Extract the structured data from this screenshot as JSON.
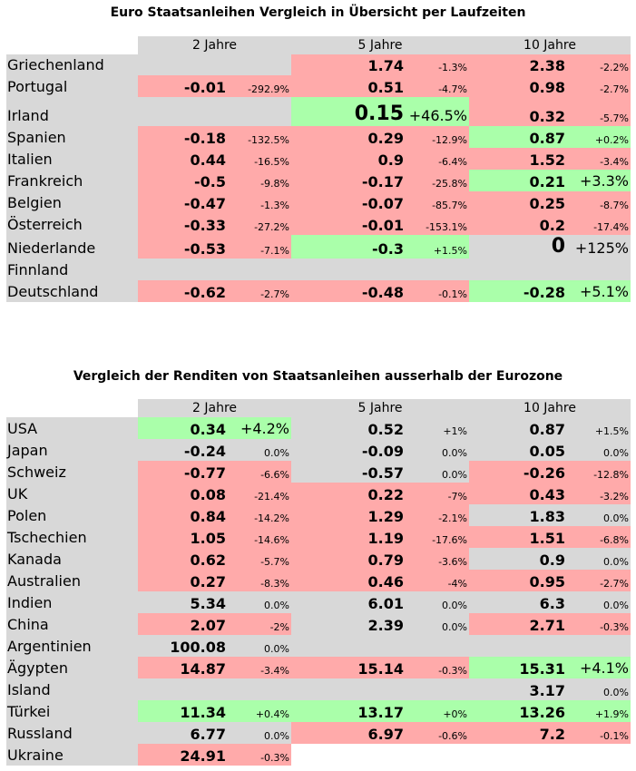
{
  "t1": {
    "title": "Euro Staatsanleihen Vergleich in Übersicht per Laufzeiten",
    "headers": [
      "2 Jahre",
      "5 Jahre",
      "10 Jahre"
    ],
    "rows": [
      {
        "name": "Griechenland",
        "h": 23,
        "cells": [
          {
            "bg": "grey"
          },
          {
            "v": "1.74",
            "c": "-1.3%",
            "bg": "red"
          },
          {
            "v": "2.38",
            "c": "-2.2%",
            "bg": "red"
          }
        ]
      },
      {
        "name": "Portugal",
        "h": 24,
        "cells": [
          {
            "v": "-0.01",
            "c": "-292.9%",
            "bg": "red"
          },
          {
            "v": "0.51",
            "c": "-4.7%",
            "bg": "red"
          },
          {
            "v": "0.98",
            "c": "-2.7%",
            "bg": "red"
          }
        ]
      },
      {
        "name": "Irland",
        "h": 32,
        "cells": [
          {
            "bg": "grey"
          },
          {
            "v": "0.15",
            "c": "+46.5%",
            "bg": "green",
            "big": true
          },
          {
            "v": "0.32",
            "c": "-5.7%",
            "bg": "red"
          }
        ]
      },
      {
        "name": "Spanien",
        "h": 24,
        "cells": [
          {
            "v": "-0.18",
            "c": "-132.5%",
            "bg": "red"
          },
          {
            "v": "0.29",
            "c": "-12.9%",
            "bg": "red"
          },
          {
            "v": "0.87",
            "c": "+0.2%",
            "bg": "green"
          }
        ]
      },
      {
        "name": "Italien",
        "h": 24,
        "cells": [
          {
            "v": "0.44",
            "c": "-16.5%",
            "bg": "red"
          },
          {
            "v": "0.9",
            "c": "-6.4%",
            "bg": "red"
          },
          {
            "v": "1.52",
            "c": "-3.4%",
            "bg": "red"
          }
        ]
      },
      {
        "name": "Frankreich",
        "h": 24,
        "cells": [
          {
            "v": "-0.5",
            "c": "-9.8%",
            "bg": "red"
          },
          {
            "v": "-0.17",
            "c": "-25.8%",
            "bg": "red"
          },
          {
            "v": "0.21",
            "c": "+3.3%",
            "bg": "green",
            "mid": true
          }
        ]
      },
      {
        "name": "Belgien",
        "h": 24,
        "cells": [
          {
            "v": "-0.47",
            "c": "-1.3%",
            "bg": "red"
          },
          {
            "v": "-0.07",
            "c": "-85.7%",
            "bg": "red"
          },
          {
            "v": "0.25",
            "c": "-8.7%",
            "bg": "red"
          }
        ]
      },
      {
        "name": "Österreich",
        "h": 24,
        "cells": [
          {
            "v": "-0.33",
            "c": "-27.2%",
            "bg": "red"
          },
          {
            "v": "-0.01",
            "c": "-153.1%",
            "bg": "red"
          },
          {
            "v": "0.2",
            "c": "-17.4%",
            "bg": "red"
          }
        ]
      },
      {
        "name": "Niederlande",
        "h": 26,
        "cells": [
          {
            "v": "-0.53",
            "c": "-7.1%",
            "bg": "red"
          },
          {
            "v": "-0.3",
            "c": "+1.5%",
            "bg": "green"
          },
          {
            "v": "0",
            "c": "+125%",
            "bg": "grey",
            "big": true
          }
        ]
      },
      {
        "name": "Finnland",
        "h": 24,
        "cells": [
          {
            "bg": "grey"
          },
          {
            "bg": "grey"
          },
          {
            "bg": "grey"
          }
        ]
      },
      {
        "name": "Deutschland",
        "h": 24,
        "cells": [
          {
            "v": "-0.62",
            "c": "-2.7%",
            "bg": "red"
          },
          {
            "v": "-0.48",
            "c": "-0.1%",
            "bg": "red"
          },
          {
            "v": "-0.28",
            "c": "+5.1%",
            "bg": "green",
            "mid": true
          }
        ]
      }
    ]
  },
  "t2": {
    "title": "Vergleich der Renditen von Staatsanleihen ausserhalb der Eurozone",
    "headers": [
      "2 Jahre",
      "5 Jahre",
      "10 Jahre"
    ],
    "rows": [
      {
        "name": "USA",
        "h": 24,
        "cells": [
          {
            "v": "0.34",
            "c": "+4.2%",
            "bg": "green",
            "mid": true
          },
          {
            "v": "0.52",
            "c": "+1%",
            "bg": "grey"
          },
          {
            "v": "0.87",
            "c": "+1.5%",
            "bg": "grey"
          }
        ]
      },
      {
        "name": "Japan",
        "h": 24,
        "cells": [
          {
            "v": "-0.24",
            "c": "0.0%",
            "bg": "grey"
          },
          {
            "v": "-0.09",
            "c": "0.0%",
            "bg": "grey"
          },
          {
            "v": "0.05",
            "c": "0.0%",
            "bg": "grey"
          }
        ]
      },
      {
        "name": "Schweiz",
        "h": 24,
        "cells": [
          {
            "v": "-0.77",
            "c": "-6.6%",
            "bg": "red"
          },
          {
            "v": "-0.57",
            "c": "0.0%",
            "bg": "grey"
          },
          {
            "v": "-0.26",
            "c": "-12.8%",
            "bg": "red"
          }
        ]
      },
      {
        "name": "UK",
        "h": 24,
        "cells": [
          {
            "v": "0.08",
            "c": "-21.4%",
            "bg": "red"
          },
          {
            "v": "0.22",
            "c": "-7%",
            "bg": "red"
          },
          {
            "v": "0.43",
            "c": "-3.2%",
            "bg": "red"
          }
        ]
      },
      {
        "name": "Polen",
        "h": 24,
        "cells": [
          {
            "v": "0.84",
            "c": "-14.2%",
            "bg": "red"
          },
          {
            "v": "1.29",
            "c": "-2.1%",
            "bg": "red"
          },
          {
            "v": "1.83",
            "c": "0.0%",
            "bg": "grey"
          }
        ]
      },
      {
        "name": "Tschechien",
        "h": 24,
        "cells": [
          {
            "v": "1.05",
            "c": "-14.6%",
            "bg": "red"
          },
          {
            "v": "1.19",
            "c": "-17.6%",
            "bg": "red"
          },
          {
            "v": "1.51",
            "c": "-6.8%",
            "bg": "red"
          }
        ]
      },
      {
        "name": "Kanada",
        "h": 24,
        "cells": [
          {
            "v": "0.62",
            "c": "-5.7%",
            "bg": "red"
          },
          {
            "v": "0.79",
            "c": "-3.6%",
            "bg": "red"
          },
          {
            "v": "0.9",
            "c": "0.0%",
            "bg": "grey"
          }
        ]
      },
      {
        "name": "Australien",
        "h": 24,
        "cells": [
          {
            "v": "0.27",
            "c": "-8.3%",
            "bg": "red"
          },
          {
            "v": "0.46",
            "c": "-4%",
            "bg": "red"
          },
          {
            "v": "0.95",
            "c": "-2.7%",
            "bg": "red"
          }
        ]
      },
      {
        "name": "Indien",
        "h": 24,
        "cells": [
          {
            "v": "5.34",
            "c": "0.0%",
            "bg": "grey"
          },
          {
            "v": "6.01",
            "c": "0.0%",
            "bg": "grey"
          },
          {
            "v": "6.3",
            "c": "0.0%",
            "bg": "grey"
          }
        ]
      },
      {
        "name": "China",
        "h": 24,
        "cells": [
          {
            "v": "2.07",
            "c": "-2%",
            "bg": "red"
          },
          {
            "v": "2.39",
            "c": "0.0%",
            "bg": "grey"
          },
          {
            "v": "2.71",
            "c": "-0.3%",
            "bg": "red"
          }
        ]
      },
      {
        "name": "Argentinien",
        "h": 24,
        "cells": [
          {
            "v": "100.08",
            "c": "0.0%",
            "bg": "grey"
          },
          {
            "bg": "grey"
          },
          {
            "bg": "grey"
          }
        ]
      },
      {
        "name": "Ägypten",
        "h": 24,
        "cells": [
          {
            "v": "14.87",
            "c": "-3.4%",
            "bg": "red"
          },
          {
            "v": "15.14",
            "c": "-0.3%",
            "bg": "red"
          },
          {
            "v": "15.31",
            "c": "+4.1%",
            "bg": "green",
            "mid": true
          }
        ]
      },
      {
        "name": "Island",
        "h": 24,
        "cells": [
          {
            "bg": "grey"
          },
          {
            "bg": "grey"
          },
          {
            "v": "3.17",
            "c": "0.0%",
            "bg": "grey"
          }
        ]
      },
      {
        "name": "Türkei",
        "h": 24,
        "cells": [
          {
            "v": "11.34",
            "c": "+0.4%",
            "bg": "green"
          },
          {
            "v": "13.17",
            "c": "+0%",
            "bg": "green"
          },
          {
            "v": "13.26",
            "c": "+1.9%",
            "bg": "green"
          }
        ]
      },
      {
        "name": "Russland",
        "h": 24,
        "cells": [
          {
            "v": "6.77",
            "c": "0.0%",
            "bg": "grey"
          },
          {
            "v": "6.97",
            "c": "-0.6%",
            "bg": "red"
          },
          {
            "v": "7.2",
            "c": "-0.1%",
            "bg": "red"
          }
        ]
      },
      {
        "name": "Ukraine",
        "h": 24,
        "cells": [
          {
            "v": "24.91",
            "c": "-0.3%",
            "bg": "red"
          },
          {
            "bg": "blank"
          },
          {
            "bg": "blank"
          }
        ]
      }
    ]
  }
}
